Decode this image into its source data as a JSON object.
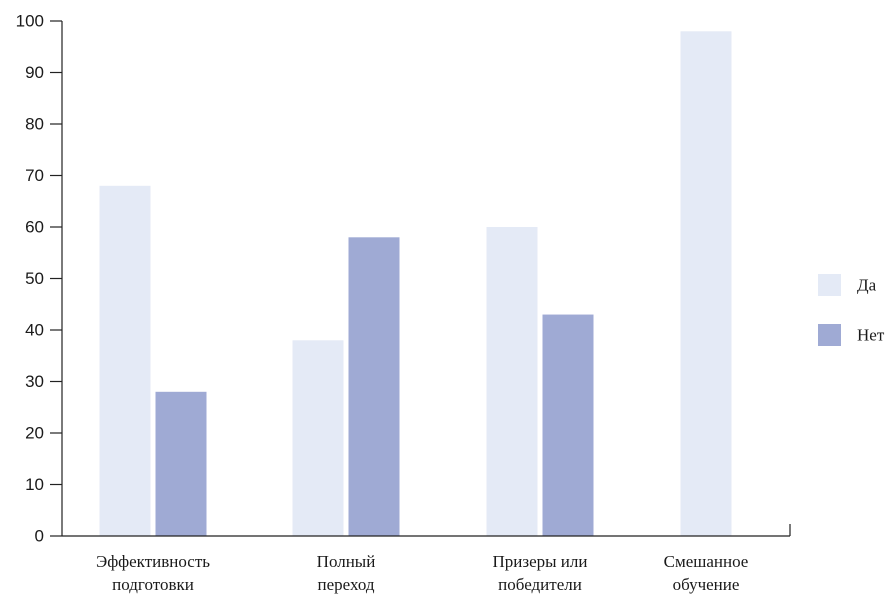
{
  "chart_data": {
    "type": "bar",
    "title": "",
    "xlabel": "",
    "ylabel": "",
    "categories": [
      [
        "Эффективность",
        "подготовки"
      ],
      [
        "Полный",
        "переход"
      ],
      [
        "Призеры или",
        "победители"
      ],
      [
        "Смешанное",
        "обучение"
      ]
    ],
    "series": [
      {
        "name": "Да",
        "values": [
          68,
          38,
          60,
          98
        ],
        "color": "#e4eaf6"
      },
      {
        "name": "Нет",
        "values": [
          28,
          58,
          43,
          null
        ],
        "color": "#9faad4"
      }
    ],
    "ylim": [
      0,
      100
    ],
    "yticks": [
      0,
      10,
      20,
      30,
      40,
      50,
      60,
      70,
      80,
      90,
      100
    ],
    "grid": false,
    "legend_position": "right"
  }
}
